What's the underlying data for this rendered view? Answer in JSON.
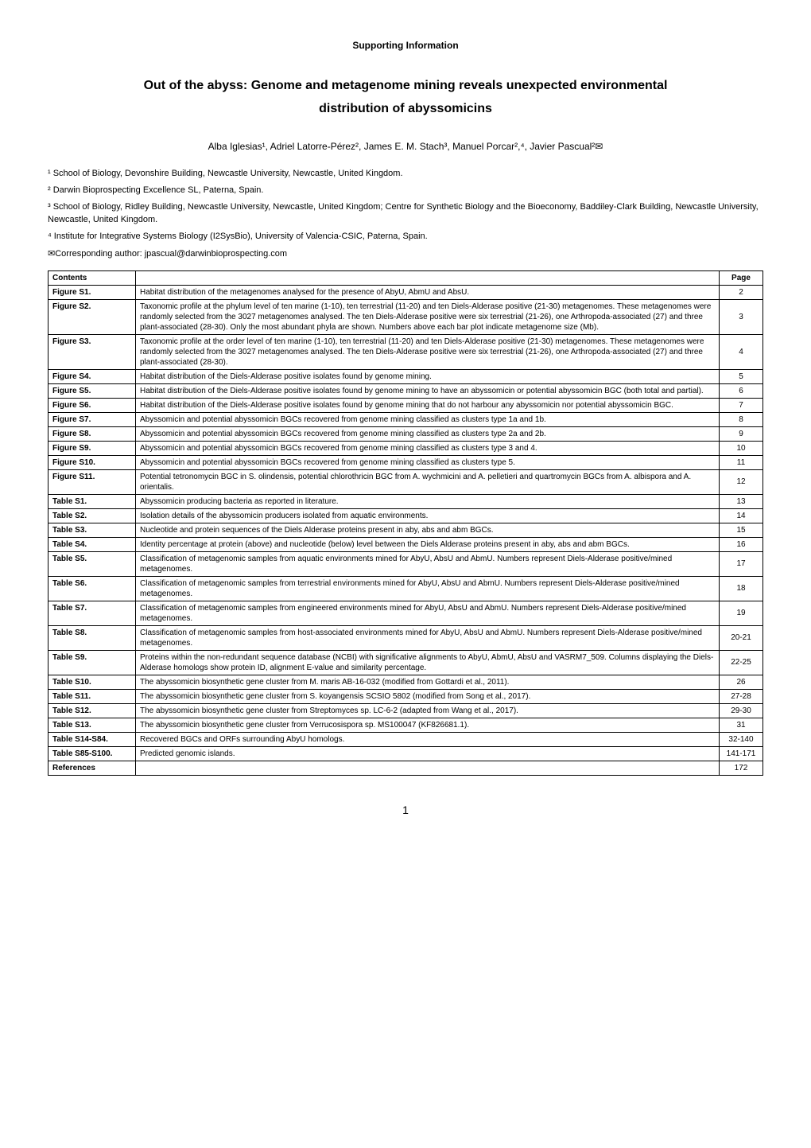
{
  "header": {
    "supporting_info": "Supporting Information",
    "title_line1": "Out of the abyss: Genome and metagenome mining reveals unexpected environmental",
    "title_line2": "distribution of abyssomicins",
    "authors": "Alba Iglesias¹, Adriel Latorre-Pérez², James E. M. Stach³, Manuel Porcar²,⁴, Javier Pascual²✉",
    "affiliations": [
      "¹ School of Biology, Devonshire Building, Newcastle University, Newcastle, United Kingdom.",
      "² Darwin Bioprospecting Excellence SL, Paterna, Spain.",
      "³ School of Biology, Ridley Building, Newcastle University, Newcastle, United Kingdom; Centre for Synthetic Biology and the Bioeconomy, Baddiley-Clark Building, Newcastle University, Newcastle, United Kingdom.",
      "⁴ Institute for Integrative Systems Biology (I2SysBio), University of Valencia-CSIC, Paterna, Spain."
    ],
    "corresponding": "✉Corresponding author: jpascual@darwinbioprospecting.com"
  },
  "table": {
    "header_contents": "Contents",
    "header_page": "Page",
    "rows": [
      {
        "label": "Figure S1.",
        "desc": "Habitat distribution of the metagenomes analysed for the presence of AbyU, AbmU and AbsU.",
        "page": "2"
      },
      {
        "label": "Figure S2.",
        "desc": "Taxonomic profile at the phylum level of ten marine (1-10), ten terrestrial (11-20) and ten Diels-Alderase positive (21-30) metagenomes. These metagenomes were randomly selected from the 3027 metagenomes analysed. The ten Diels-Alderase positive were six terrestrial (21-26), one Arthropoda-associated (27) and three plant-associated (28-30). Only the most abundant phyla are shown. Numbers above each bar plot indicate metagenome size (Mb).",
        "page": "3"
      },
      {
        "label": "Figure S3.",
        "desc": "Taxonomic profile at the order level of ten marine (1-10), ten terrestrial (11-20) and ten Diels-Alderase positive (21-30) metagenomes. These metagenomes were randomly selected from the 3027 metagenomes analysed. The ten Diels-Alderase positive were six terrestrial (21-26), one Arthropoda-associated (27) and three plant-associated (28-30).",
        "page": "4"
      },
      {
        "label": "Figure S4.",
        "desc": "Habitat distribution of the Diels-Alderase positive isolates found by genome mining.",
        "page": "5"
      },
      {
        "label": "Figure S5.",
        "desc": "Habitat distribution of the Diels-Alderase positive isolates found by genome mining to have an abyssomicin or potential abyssomicin BGC (both total and partial).",
        "page": "6"
      },
      {
        "label": "Figure S6.",
        "desc": "Habitat distribution of the Diels-Alderase positive isolates found by genome mining that do not harbour any abyssomicin nor potential abyssomicin BGC.",
        "page": "7"
      },
      {
        "label": "Figure S7.",
        "desc": "Abyssomicin and potential abyssomicin BGCs recovered from genome mining classified as clusters type 1a and 1b.",
        "page": "8"
      },
      {
        "label": "Figure S8.",
        "desc": "Abyssomicin and potential abyssomicin BGCs recovered from genome mining classified as clusters type 2a and 2b.",
        "page": "9"
      },
      {
        "label": "Figure S9.",
        "desc": "Abyssomicin and potential abyssomicin BGCs recovered from genome mining classified as clusters type 3 and 4.",
        "page": "10"
      },
      {
        "label": "Figure S10.",
        "desc": "Abyssomicin and potential abyssomicin BGCs recovered from genome mining classified as clusters type 5.",
        "page": "11"
      },
      {
        "label": "Figure S11.",
        "desc": "Potential tetronomycin BGC in S. olindensis, potential chlorothricin BGC from A. wychmicini and A. pelletieri and quartromycin BGCs from A. albispora and A. orientalis.",
        "page": "12"
      },
      {
        "label": "Table S1.",
        "desc": "Abyssomicin producing bacteria as reported in literature.",
        "page": "13"
      },
      {
        "label": "Table S2.",
        "desc": "Isolation details of the abyssomicin producers isolated from aquatic environments.",
        "page": "14"
      },
      {
        "label": "Table S3.",
        "desc": "Nucleotide and protein sequences of the Diels Alderase proteins present in aby, abs and abm BGCs.",
        "page": "15"
      },
      {
        "label": "Table S4.",
        "desc": "Identity percentage at protein (above) and nucleotide (below) level between the Diels Alderase proteins present in aby, abs and abm BGCs.",
        "page": "16"
      },
      {
        "label": "Table S5.",
        "desc": "Classification of metagenomic samples from aquatic environments mined for AbyU, AbsU and AbmU. Numbers represent Diels-Alderase positive/mined metagenomes.",
        "page": "17"
      },
      {
        "label": "Table S6.",
        "desc": "Classification of metagenomic samples from terrestrial environments mined for AbyU, AbsU and AbmU. Numbers represent Diels-Alderase positive/mined metagenomes.",
        "page": "18"
      },
      {
        "label": "Table S7.",
        "desc": "Classification of metagenomic samples from engineered environments mined for AbyU, AbsU and AbmU. Numbers represent Diels-Alderase positive/mined metagenomes.",
        "page": "19"
      },
      {
        "label": "Table S8.",
        "desc": "Classification of metagenomic samples from host-associated environments mined for AbyU, AbsU and AbmU. Numbers represent Diels-Alderase positive/mined metagenomes.",
        "page": "20-21"
      },
      {
        "label": "Table S9.",
        "desc": "Proteins within the non-redundant sequence database (NCBI) with significative alignments to AbyU, AbmU, AbsU and VASRM7_509. Columns displaying the Diels-Alderase homologs show protein ID, alignment E-value and similarity percentage.",
        "page": "22-25"
      },
      {
        "label": "Table S10.",
        "desc": "The abyssomicin biosynthetic gene cluster from M. maris AB-16-032 (modified from Gottardi et al., 2011).",
        "page": "26"
      },
      {
        "label": "Table S11.",
        "desc": "The abyssomicin biosynthetic gene cluster from S. koyangensis SCSIO 5802 (modified from Song et al., 2017).",
        "page": "27-28"
      },
      {
        "label": "Table S12.",
        "desc": "The abyssomicin biosynthetic gene cluster from Streptomyces sp. LC-6-2 (adapted from Wang et al., 2017).",
        "page": "29-30"
      },
      {
        "label": "Table S13.",
        "desc": "The abyssomicin biosynthetic gene cluster from Verrucosispora sp. MS100047 (KF826681.1).",
        "page": "31"
      },
      {
        "label": "Table S14-S84.",
        "desc": "Recovered BGCs and ORFs surrounding AbyU homologs.",
        "page": "32-140"
      },
      {
        "label": "Table S85-S100.",
        "desc": "Predicted genomic islands.",
        "page": "141-171"
      },
      {
        "label": "References",
        "desc": "",
        "page": "172"
      }
    ]
  },
  "page_number": "1"
}
